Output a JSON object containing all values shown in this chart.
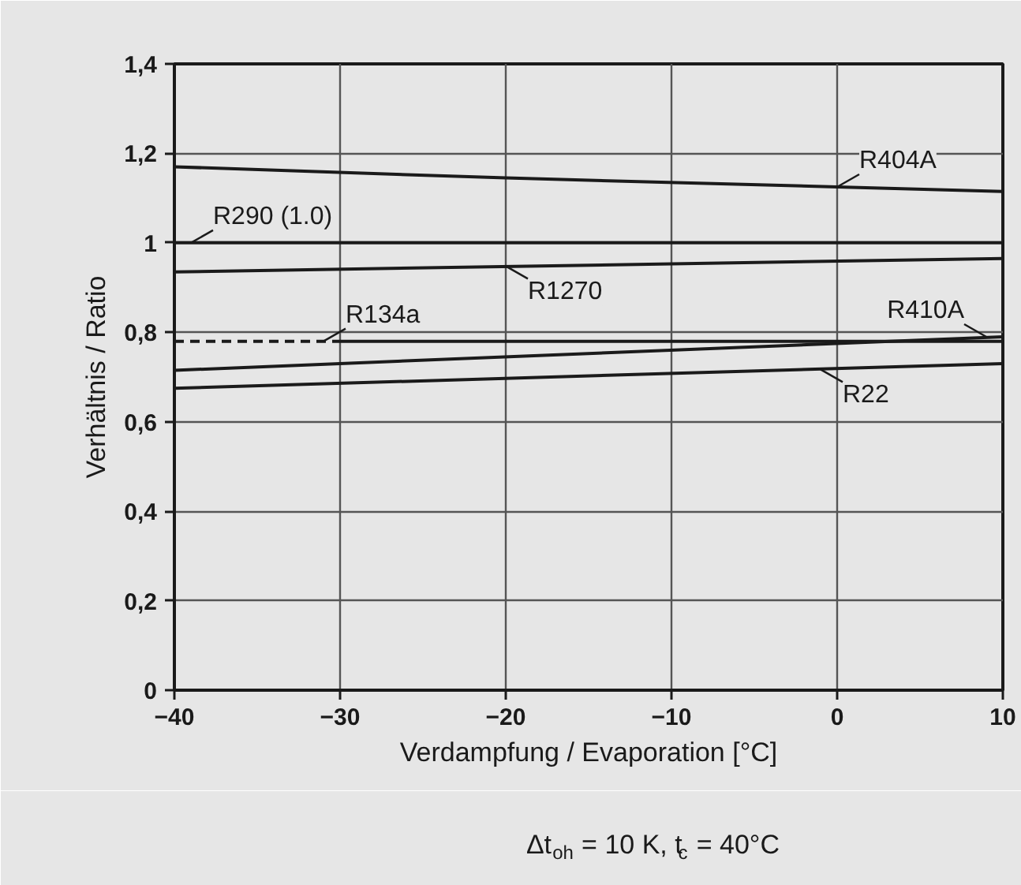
{
  "chart_data": {
    "type": "line",
    "xlabel": "Verdampfung / Evaporation [°C]",
    "ylabel": "Verhältnis / Ratio",
    "subtitle": "Δt$_{oh}$ = 10 K, t$_{c}$ = 40°C",
    "xlim": [
      -40,
      10
    ],
    "xticks": [
      -40,
      -30,
      -20,
      -10,
      0,
      10
    ],
    "ylim": [
      0,
      1.4
    ],
    "yticks": [
      0,
      {
        "value": 0.2,
        "label": "0,2"
      },
      {
        "value": 0.4,
        "label": "0,4"
      },
      {
        "value": 0.6,
        "label": "0,6"
      },
      {
        "value": 0.8,
        "label": "0,8"
      },
      1,
      {
        "value": 1.2,
        "label": "1,2"
      },
      {
        "value": 1.4,
        "label": "1,4"
      }
    ],
    "grid": true,
    "marker": "none",
    "line_style": "solid",
    "series": [
      {
        "color": "#1a1a1a",
        "x": [
          -40,
          -20,
          0,
          10
        ],
        "values": [
          1.17,
          1.145,
          1.125,
          1.115
        ]
      },
      {
        "color": "#1a1a1a",
        "x": [
          -40,
          10
        ],
        "values": [
          1.0,
          1.0
        ]
      },
      {
        "color": "#1a1a1a",
        "x": [
          -40,
          10
        ],
        "values": [
          0.935,
          0.965
        ]
      },
      {
        "color": "#1a1a1a",
        "x": [
          -40,
          -30
        ],
        "values": [
          0.78,
          0.78
        ],
        "line_style": "dashed"
      },
      {
        "color": "#1a1a1a",
        "x": [
          -30,
          10
        ],
        "values": [
          0.78,
          0.78
        ]
      },
      {
        "color": "#1a1a1a",
        "x": [
          -40,
          10
        ],
        "values": [
          0.715,
          0.79
        ]
      },
      {
        "color": "#1a1a1a",
        "x": [
          -40,
          10
        ],
        "values": [
          0.675,
          0.73
        ]
      }
    ],
    "annotations": [
      {
        "text": "R404A",
        "x": 0,
        "y": 1.125
      },
      {
        "text": "R290 (1.0)",
        "x": -39,
        "y": 1.0
      },
      {
        "text": "R1270",
        "x": -20,
        "y": 0.948
      },
      {
        "text": "R134a",
        "x": -31,
        "y": 0.78
      },
      {
        "text": "R410A",
        "x": 9,
        "y": 0.79
      },
      {
        "text": "R22",
        "x": -1,
        "y": 0.717
      }
    ]
  }
}
